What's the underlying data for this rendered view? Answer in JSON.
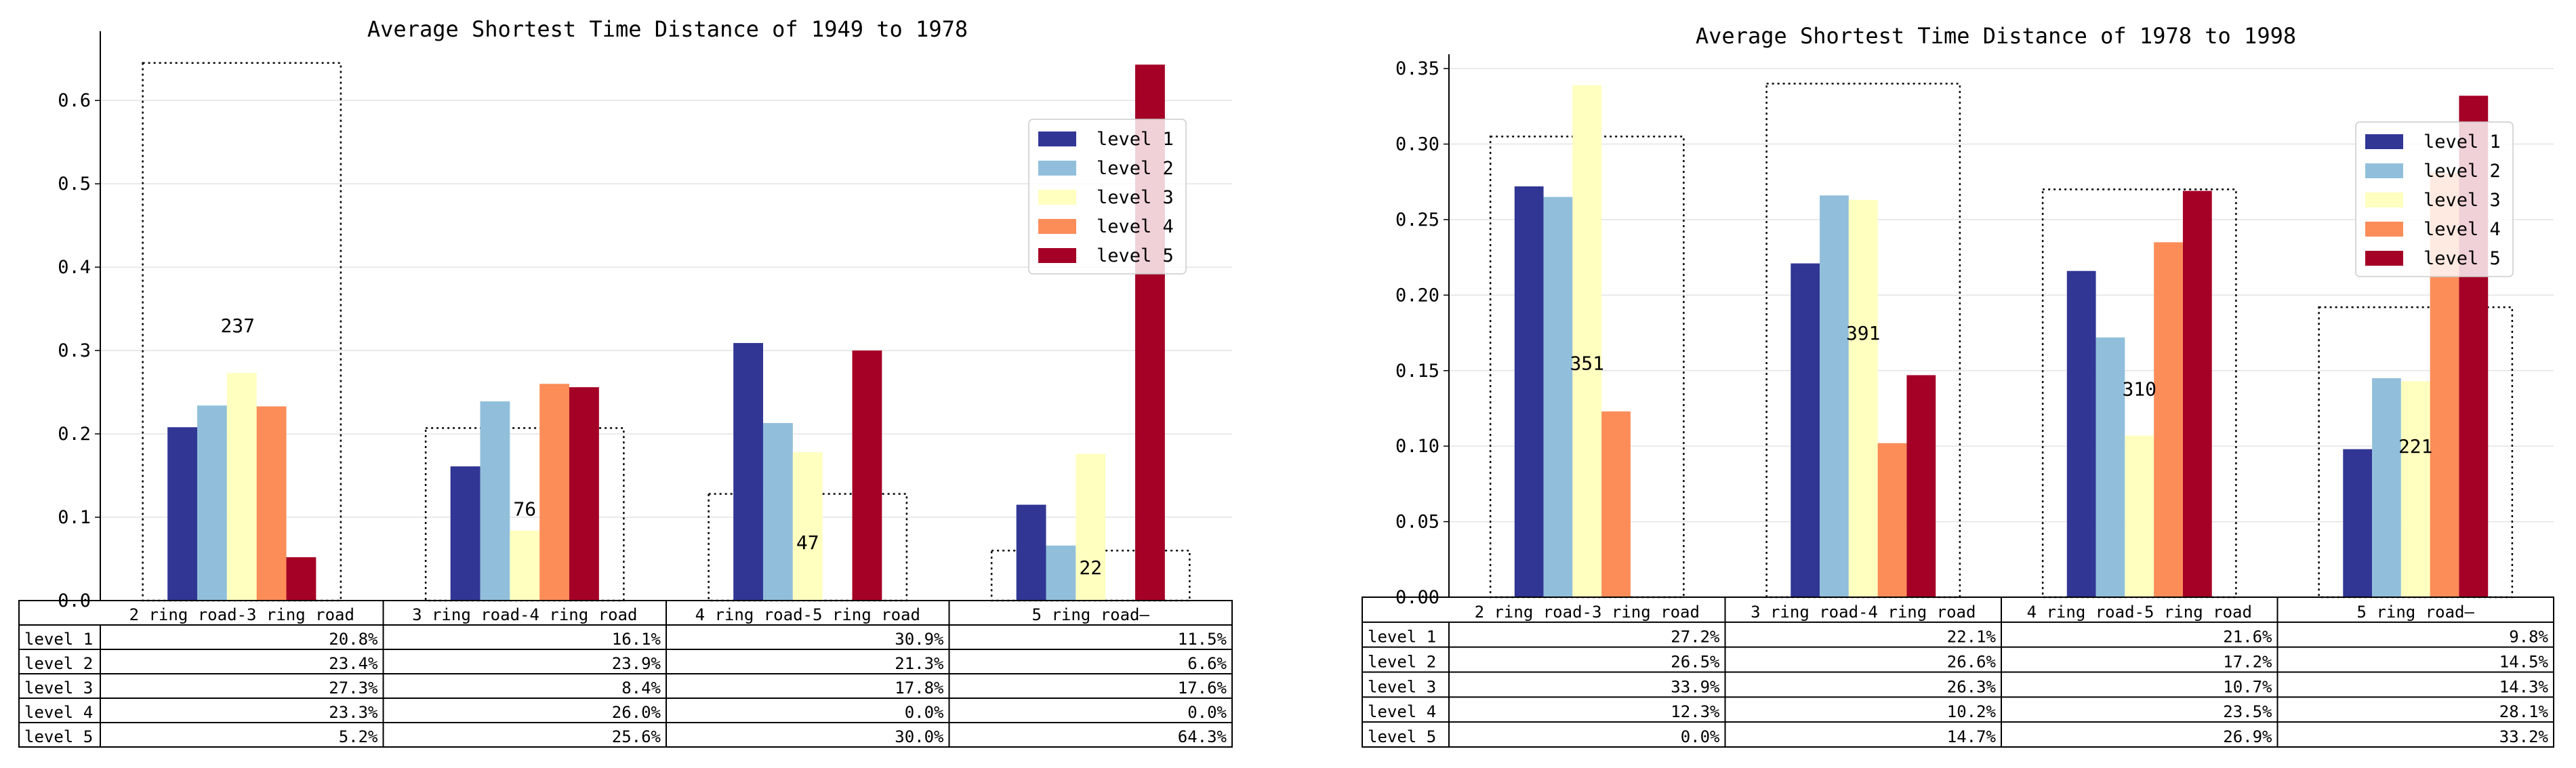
{
  "chart_data": [
    {
      "type": "bar",
      "title": "Average Shortest Time Distance of 1949 to 1978",
      "categories": [
        "2 ring road-3 ring road",
        "3 ring road-4 ring road",
        "4 ring road-5 ring road",
        "5 ring road—"
      ],
      "series": [
        {
          "name": "level 1",
          "values": [
            0.208,
            0.161,
            0.309,
            0.115
          ],
          "labels": [
            "20.8%",
            "16.1%",
            "30.9%",
            "11.5%"
          ]
        },
        {
          "name": "level 2",
          "values": [
            0.234,
            0.239,
            0.213,
            0.066
          ],
          "labels": [
            "23.4%",
            "23.9%",
            "21.3%",
            "6.6%"
          ]
        },
        {
          "name": "level 3",
          "values": [
            0.273,
            0.084,
            0.178,
            0.176
          ],
          "labels": [
            "27.3%",
            "8.4%",
            "17.8%",
            "17.6%"
          ]
        },
        {
          "name": "level 4",
          "values": [
            0.233,
            0.26,
            0.0,
            0.0
          ],
          "labels": [
            "23.3%",
            "26.0%",
            "0.0%",
            "0.0%"
          ]
        },
        {
          "name": "level 5",
          "values": [
            0.052,
            0.256,
            0.3,
            0.643
          ],
          "labels": [
            "5.2%",
            "25.6%",
            "30.0%",
            "64.3%"
          ]
        }
      ],
      "counts": [
        "237",
        "76",
        "47",
        "22"
      ],
      "count_box_heights": [
        0.645,
        0.207,
        0.128,
        0.06
      ],
      "count_label_y": [
        0.33,
        0.11,
        0.07,
        0.04
      ],
      "yticks": [
        0.0,
        0.1,
        0.2,
        0.3,
        0.4,
        0.5,
        0.6
      ],
      "ytick_labels": [
        "0.0",
        "0.1",
        "0.2",
        "0.3",
        "0.4",
        "0.5",
        "0.6"
      ],
      "ylim": [
        0,
        0.675
      ],
      "xlabel": "",
      "ylabel": "",
      "legend_position": "upper-right",
      "grid": true
    },
    {
      "type": "bar",
      "title": "Average Shortest Time Distance of 1978 to 1998",
      "categories": [
        "2 ring road-3 ring road",
        "3 ring road-4 ring road",
        "4 ring road-5 ring road",
        "5 ring road—"
      ],
      "series": [
        {
          "name": "level 1",
          "values": [
            0.272,
            0.221,
            0.216,
            0.098
          ],
          "labels": [
            "27.2%",
            "22.1%",
            "21.6%",
            "9.8%"
          ]
        },
        {
          "name": "level 2",
          "values": [
            0.265,
            0.266,
            0.172,
            0.145
          ],
          "labels": [
            "26.5%",
            "26.6%",
            "17.2%",
            "14.5%"
          ]
        },
        {
          "name": "level 3",
          "values": [
            0.339,
            0.263,
            0.107,
            0.143
          ],
          "labels": [
            "33.9%",
            "26.3%",
            "10.7%",
            "14.3%"
          ]
        },
        {
          "name": "level 4",
          "values": [
            0.123,
            0.102,
            0.235,
            0.281
          ],
          "labels": [
            "12.3%",
            "10.2%",
            "23.5%",
            "28.1%"
          ]
        },
        {
          "name": "level 5",
          "values": [
            0.0,
            0.147,
            0.269,
            0.332
          ],
          "labels": [
            "0.0%",
            "14.7%",
            "26.9%",
            "33.2%"
          ]
        }
      ],
      "counts": [
        "351",
        "391",
        "310",
        "221"
      ],
      "count_box_heights": [
        0.305,
        0.34,
        0.27,
        0.192
      ],
      "count_label_y": [
        0.155,
        0.175,
        0.138,
        0.1
      ],
      "yticks": [
        0.0,
        0.05,
        0.1,
        0.15,
        0.2,
        0.25,
        0.3,
        0.35
      ],
      "ytick_labels": [
        "0.00",
        "0.05",
        "0.10",
        "0.15",
        "0.20",
        "0.25",
        "0.30",
        "0.35"
      ],
      "ylim": [
        0,
        0.355
      ],
      "xlabel": "",
      "ylabel": "",
      "legend_position": "upper-right",
      "grid": true
    }
  ],
  "colors": [
    "#313695",
    "#91bfdb",
    "#ffffbf",
    "#fc8d59",
    "#a50026"
  ]
}
